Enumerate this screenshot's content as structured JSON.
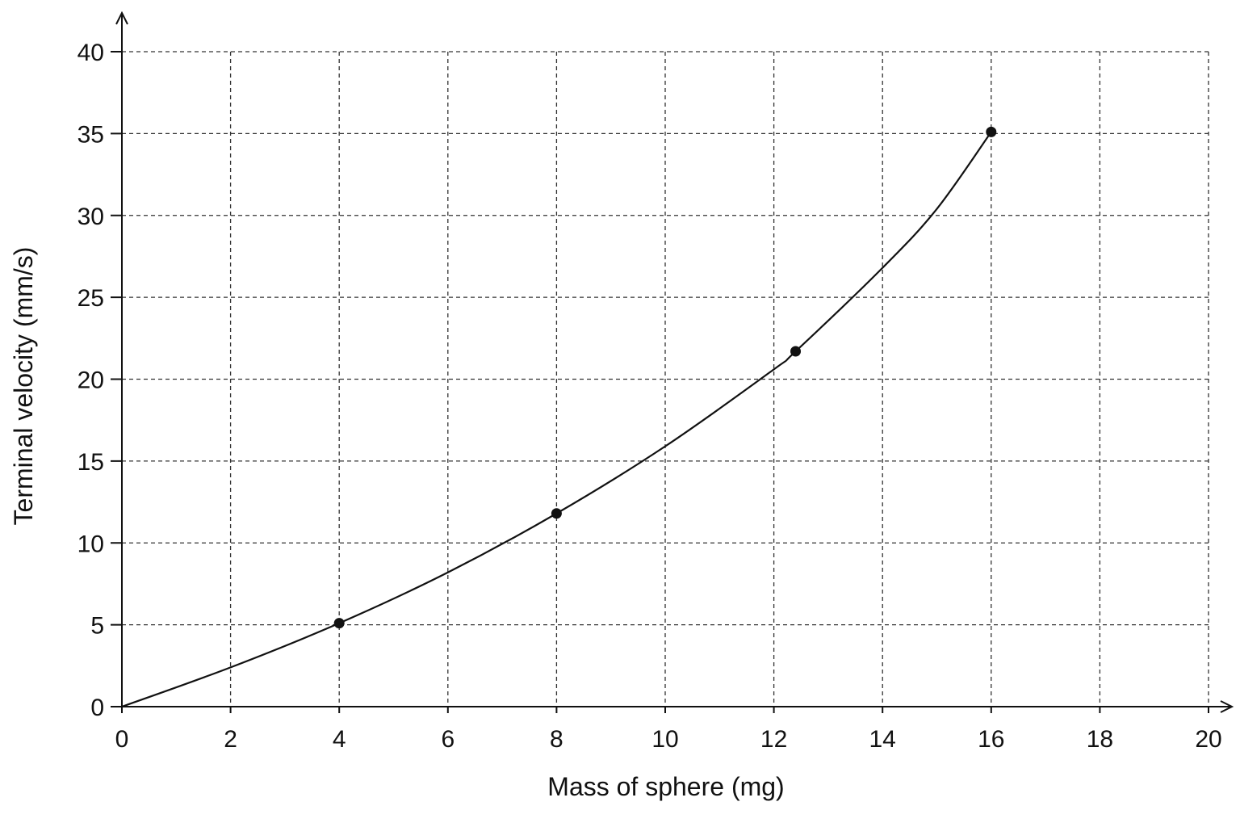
{
  "chart_data": {
    "type": "scatter",
    "xlabel": "Mass of sphere (mg)",
    "ylabel": "Terminal velocity (mm/s)",
    "xlim": [
      0,
      20
    ],
    "ylim": [
      0,
      40
    ],
    "x_ticks": [
      0,
      2,
      4,
      6,
      8,
      10,
      12,
      14,
      16,
      18,
      20
    ],
    "y_ticks": [
      0,
      5,
      10,
      15,
      20,
      25,
      30,
      35,
      40
    ],
    "grid": true,
    "grid_style": "dashed",
    "legend": "none",
    "points": [
      {
        "x": 4,
        "y": 5.1
      },
      {
        "x": 8,
        "y": 11.8
      },
      {
        "x": 12.4,
        "y": 21.7
      },
      {
        "x": 16,
        "y": 35.1
      }
    ],
    "curve": [
      {
        "x": 0,
        "y": 0
      },
      {
        "x": 2,
        "y": 2.4
      },
      {
        "x": 4,
        "y": 5.1
      },
      {
        "x": 6,
        "y": 8.2
      },
      {
        "x": 8,
        "y": 11.8
      },
      {
        "x": 10,
        "y": 15.9
      },
      {
        "x": 12,
        "y": 20.6
      },
      {
        "x": 12.4,
        "y": 21.7
      },
      {
        "x": 14,
        "y": 26.8
      },
      {
        "x": 15,
        "y": 30.4
      },
      {
        "x": 16,
        "y": 35.1
      }
    ],
    "line_color": "#111111",
    "marker_color": "#111111"
  }
}
